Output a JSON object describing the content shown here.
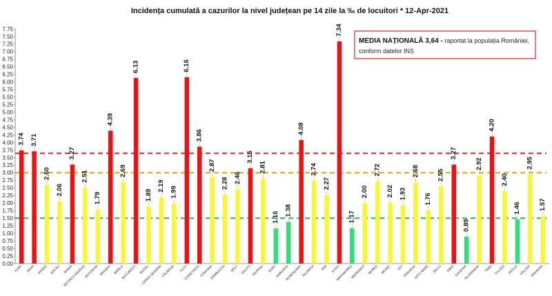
{
  "chart_data": {
    "type": "bar",
    "title": "Incidența cumulată a cazurilor la nivel județean pe 14 zile la ‰ de locuitori *  12-Apr-2021",
    "ylim": [
      0,
      7.75
    ],
    "ytick_step": 0.25,
    "ytick_labels": [
      "0.00",
      "0.25",
      "0.50",
      "0.75",
      "1.00",
      "1.25",
      "1.50",
      "1.75",
      "2.00",
      "2.25",
      "2.50",
      "2.75",
      "3.00",
      "3.25",
      "3.50",
      "3.75",
      "4.00",
      "4.25",
      "4.50",
      "4.75",
      "5.00",
      "5.25",
      "5.50",
      "5.75",
      "6.00",
      "6.25",
      "6.50",
      "6.75",
      "7.00",
      "7.25",
      "7.50",
      "7.75"
    ],
    "categories": [
      "ALBA",
      "ARAD",
      "ARGEȘ",
      "BACĂU",
      "BIHOR",
      "BISTRIȚA-NĂSĂUD",
      "BOTOȘANI",
      "BRAȘOV",
      "BRĂILA",
      "BUCUREȘTI",
      "BUZĂU",
      "CARAȘ-SEVERIN",
      "CĂLĂRAȘI",
      "CLUJ",
      "CONSTANȚA",
      "COVASNA",
      "DÂMBOVIȚA",
      "DOLJ",
      "GALAȚI",
      "GIURGIU",
      "GORJ",
      "HARGHITA",
      "HUNEDOARA",
      "IALOMIȚA",
      "IAȘI",
      "ILFOV",
      "MARAMUREȘ",
      "MEHEDINȚI",
      "MUREȘ",
      "NEAMȚ",
      "OLT",
      "PRAHOVA",
      "SATU MARE",
      "SĂLAJ",
      "SIBIU",
      "SUCEAVA",
      "TELEORMAN",
      "TIMIȘ",
      "TULCEA",
      "VASLUI",
      "VÂLCEA",
      "VRANCEA"
    ],
    "values": [
      3.74,
      3.71,
      2.6,
      2.06,
      3.27,
      2.51,
      1.79,
      4.39,
      2.69,
      6.13,
      1.89,
      2.19,
      1.99,
      6.16,
      3.86,
      2.87,
      2.28,
      2.46,
      3.15,
      2.81,
      1.16,
      1.38,
      4.08,
      2.74,
      2.27,
      7.34,
      1.17,
      2.0,
      2.72,
      2.02,
      1.93,
      2.68,
      1.76,
      2.55,
      3.27,
      0.89,
      2.92,
      4.2,
      2.4,
      1.46,
      2.95,
      1.57
    ],
    "value_labels": [
      "3.74",
      "3.71",
      "2.60",
      "2.06",
      "3.27",
      "2.51",
      "1.79",
      "4.39",
      "2.69",
      "6.13",
      "1.89",
      "2.19",
      "1.99",
      "6.16",
      "3.86",
      "2.87",
      "2.28",
      "2.46",
      "3.15",
      "2.81",
      "1.16",
      "1.38",
      "4.08",
      "2.74",
      "2.27",
      "7.34",
      "1.17",
      "2.00",
      "2.72",
      "2.02",
      "1.93",
      "2.68",
      "1.76",
      "2.55",
      "3.27",
      "0.89",
      "2.92",
      "4.20",
      "2.40",
      "1.46",
      "2.95",
      "1.57"
    ],
    "color_scale": {
      "high": "#ee1111",
      "medium": "#f7f733",
      "low": "#33dd77"
    },
    "reference_lines": [
      {
        "value": 3.64,
        "color": "#e02020"
      },
      {
        "value": 3.0,
        "color": "#e0a800"
      },
      {
        "value": 1.5,
        "color": "#22bb44"
      }
    ],
    "grid": false
  },
  "annotation": {
    "bold_text": "MEDIA NAȚIONALĂ  3,64 -",
    "text_line1": " raportat la populația României,",
    "text_line2": "conform datelor INS",
    "border_color": "#e02020"
  }
}
